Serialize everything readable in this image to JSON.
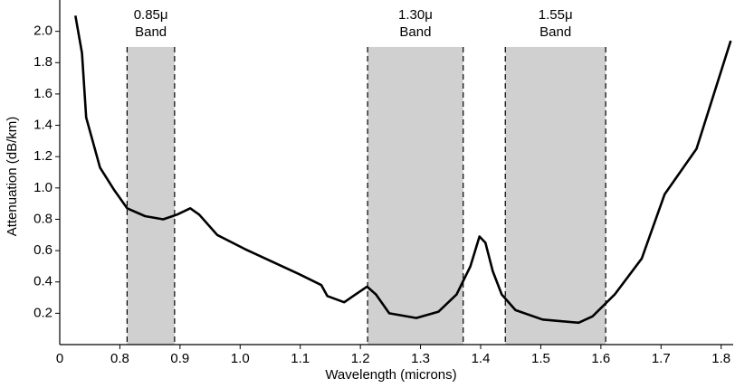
{
  "chart_data": {
    "type": "line",
    "x_label": "Wavelength (microns)",
    "y_label": "Attenuation (dB/km)",
    "origin_label": "0",
    "x": [
      0.726,
      0.737,
      0.744,
      0.767,
      0.79,
      0.812,
      0.842,
      0.872,
      0.895,
      0.917,
      0.932,
      0.962,
      1.008,
      1.098,
      1.135,
      1.145,
      1.173,
      1.188,
      1.211,
      1.226,
      1.248,
      1.293,
      1.33,
      1.36,
      1.383,
      1.398,
      1.408,
      1.42,
      1.435,
      1.458,
      1.503,
      1.563,
      1.586,
      1.623,
      1.668,
      1.706,
      1.759,
      1.816
    ],
    "series": [
      {
        "color": "#000000",
        "values": [
          2.1,
          1.86,
          1.45,
          1.13,
          0.99,
          0.87,
          0.82,
          0.8,
          0.83,
          0.87,
          0.83,
          0.7,
          0.61,
          0.45,
          0.38,
          0.31,
          0.27,
          0.31,
          0.37,
          0.32,
          0.2,
          0.17,
          0.21,
          0.32,
          0.5,
          0.69,
          0.65,
          0.47,
          0.32,
          0.22,
          0.16,
          0.14,
          0.18,
          0.32,
          0.55,
          0.96,
          1.25,
          1.94
        ]
      }
    ],
    "bands": [
      {
        "label": "0.85μ",
        "sublabel": "Band",
        "range": [
          0.812,
          0.891
        ]
      },
      {
        "label": "1.30μ",
        "sublabel": "Band",
        "range": [
          1.212,
          1.371
        ]
      },
      {
        "label": "1.55μ",
        "sublabel": "Band",
        "range": [
          1.441,
          1.608
        ]
      }
    ],
    "band_top": 1.9,
    "band_color": "#d0d0d0",
    "xlim": [
      0.7,
      1.82
    ],
    "ylim": [
      0,
      2.2
    ],
    "xticks": [
      0.8,
      0.9,
      {
        "value": 1,
        "label": "1.0"
      },
      1.1,
      1.2,
      1.3,
      1.4,
      1.5,
      1.6,
      1.7,
      1.8
    ],
    "yticks": [
      0.2,
      0.4,
      0.6,
      0.8,
      {
        "value": 1,
        "label": "1.0"
      },
      1.2,
      1.4,
      1.6,
      1.8,
      {
        "value": 2,
        "label": "2.0"
      }
    ]
  }
}
